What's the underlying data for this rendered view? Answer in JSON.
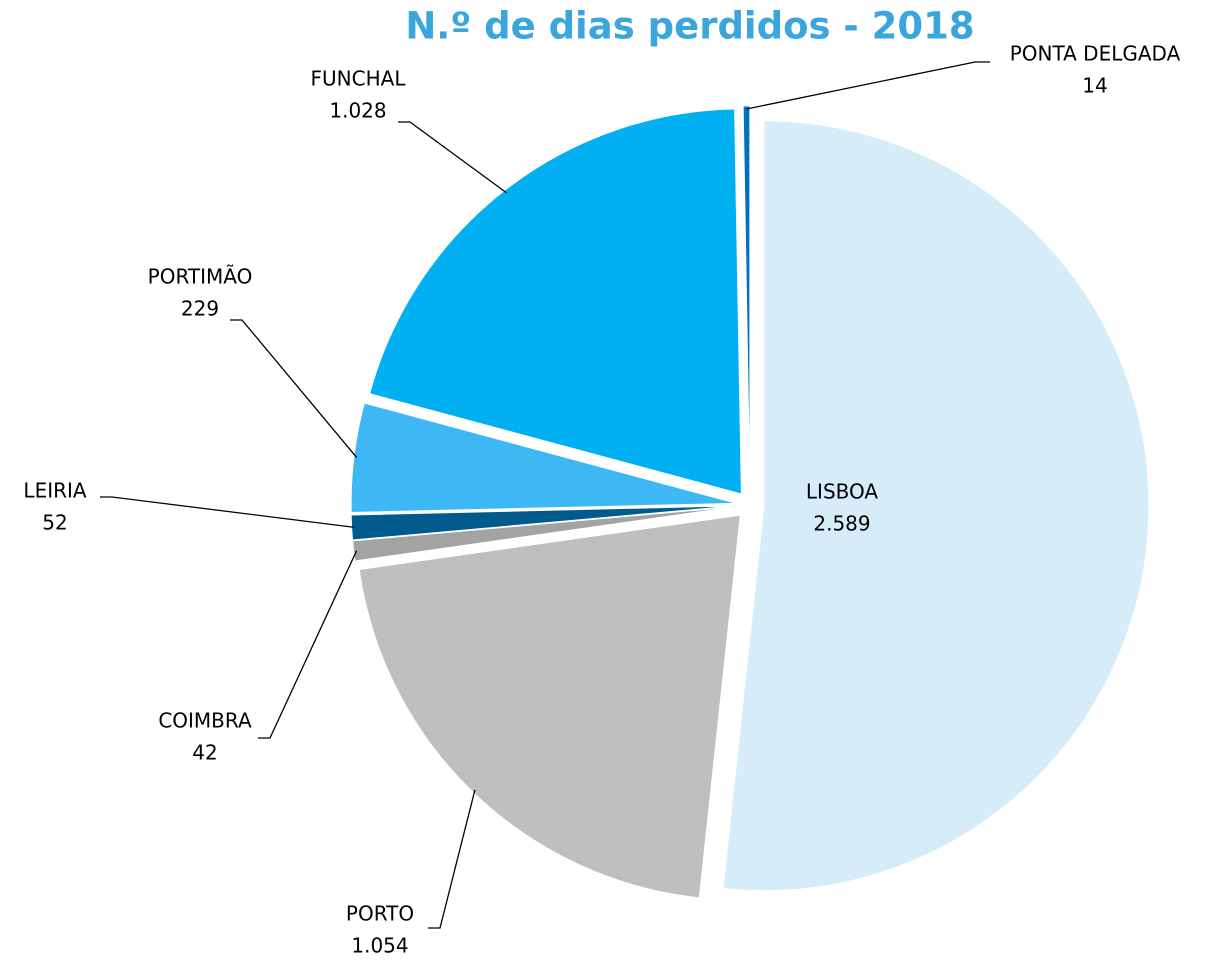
{
  "chart_data": {
    "type": "pie",
    "title": "N.º de dias perdidos - 2018",
    "categories": [
      "LISBOA",
      "PORTO",
      "COIMBRA",
      "LEIRIA",
      "PORTIMÃO",
      "FUNCHAL",
      "PONTA DELGADA"
    ],
    "values": [
      2589,
      1054,
      42,
      52,
      229,
      1028,
      14
    ],
    "value_labels": [
      "2.589",
      "1.054",
      "42",
      "52",
      "229",
      "1.028",
      "14"
    ],
    "colors": [
      "#d6edf9",
      "#bfbfbf",
      "#a3a3a3",
      "#005a8c",
      "#3db8f5",
      "#00b0f0",
      "#0070c0"
    ]
  }
}
